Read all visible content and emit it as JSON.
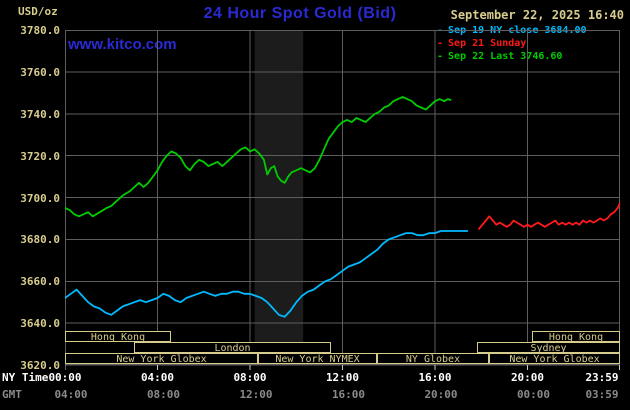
{
  "header": {
    "unit_label": "USD/oz",
    "title": "24 Hour Spot Gold (Bid)",
    "datetime": "September 22, 2025 16:40",
    "watermark": "www.kitco.com"
  },
  "legend": [
    {
      "label": "Sep 19 NY close 3684.00",
      "color": "#00bbff"
    },
    {
      "label": "Sep 21 Sunday",
      "color": "#ff1a1a"
    },
    {
      "label": "Sep 22 Last 3746.60",
      "color": "#00cc00"
    }
  ],
  "axes": {
    "ny_label": "NY Time",
    "gmt_label": "GMT",
    "x_ticks_ny": [
      "00:00",
      "04:00",
      "08:00",
      "12:00",
      "16:00",
      "20:00",
      "23:59"
    ],
    "x_ticks_gmt": [
      "04:00",
      "08:00",
      "12:00",
      "16:00",
      "20:00",
      "00:00",
      "03:59"
    ]
  },
  "sessions": {
    "rows": [
      {
        "boxes": [
          {
            "label": "Hong Kong",
            "start_hour": 0,
            "end_hour": 4.6
          },
          {
            "label": "Hong Kong",
            "start_hour": 20.2,
            "end_hour": 24
          }
        ]
      },
      {
        "boxes": [
          {
            "label": "London",
            "start_hour": 3.0,
            "end_hour": 11.5
          },
          {
            "label": "Sydney",
            "start_hour": 17.8,
            "end_hour": 24
          }
        ]
      },
      {
        "boxes": [
          {
            "label": "New York Globex",
            "start_hour": 0,
            "end_hour": 8.33
          },
          {
            "label": "New York NYMEX",
            "start_hour": 8.33,
            "end_hour": 13.5
          },
          {
            "label": "NY Globex",
            "start_hour": 13.5,
            "end_hour": 18.35
          },
          {
            "label": "New York Globex",
            "start_hour": 18.35,
            "end_hour": 24
          }
        ]
      }
    ]
  },
  "colors": {
    "background": "#000000",
    "grid": "#5e5e5e",
    "axis_text": "#d8cc8d",
    "session_box": "#d8cc8d",
    "title_blue": "#2a2ad4",
    "ny_time_text": "#ffffff",
    "gmt_text": "#8a8a8a",
    "tick_marks": "#c8c8c8",
    "cyan": "#00bbff",
    "red": "#ff1a1a",
    "green": "#00cc00"
  },
  "chart_data": {
    "type": "line",
    "title": "24 Hour Spot Gold (Bid)",
    "xlabel": "NY Time",
    "ylabel": "USD/oz",
    "ylim": [
      3620,
      3780
    ],
    "xlim_hours": [
      0,
      24
    ],
    "grid": true,
    "legend_position": "top-right",
    "y_ticks": [
      3780,
      3760,
      3740,
      3720,
      3700,
      3680,
      3660,
      3640,
      3620
    ],
    "x_tick_hours": [
      0,
      4,
      8,
      12,
      16,
      20,
      23.983
    ],
    "shaded_region": {
      "start_hour": 8.2,
      "end_hour": 10.3,
      "color": "#1c1c1c"
    },
    "series": [
      {
        "key": "sep19",
        "name": "Sep 19 NY close",
        "color": "#00bbff",
        "points": [
          [
            0,
            3652
          ],
          [
            0.25,
            3654
          ],
          [
            0.5,
            3656
          ],
          [
            0.75,
            3653
          ],
          [
            1.0,
            3650
          ],
          [
            1.25,
            3648
          ],
          [
            1.5,
            3647
          ],
          [
            1.75,
            3645
          ],
          [
            2.0,
            3644
          ],
          [
            2.25,
            3646
          ],
          [
            2.5,
            3648
          ],
          [
            2.75,
            3649
          ],
          [
            3.0,
            3650
          ],
          [
            3.25,
            3651
          ],
          [
            3.5,
            3650
          ],
          [
            3.75,
            3651
          ],
          [
            4.0,
            3652
          ],
          [
            4.25,
            3654
          ],
          [
            4.5,
            3653
          ],
          [
            4.75,
            3651
          ],
          [
            5.0,
            3650
          ],
          [
            5.25,
            3652
          ],
          [
            5.5,
            3653
          ],
          [
            5.75,
            3654
          ],
          [
            6.0,
            3655
          ],
          [
            6.25,
            3654
          ],
          [
            6.5,
            3653
          ],
          [
            6.75,
            3654
          ],
          [
            7.0,
            3654
          ],
          [
            7.25,
            3655
          ],
          [
            7.5,
            3655
          ],
          [
            7.75,
            3654
          ],
          [
            8.0,
            3654
          ],
          [
            8.25,
            3653
          ],
          [
            8.5,
            3652
          ],
          [
            8.75,
            3650
          ],
          [
            9.0,
            3647
          ],
          [
            9.25,
            3644
          ],
          [
            9.5,
            3643
          ],
          [
            9.75,
            3646
          ],
          [
            10.0,
            3650
          ],
          [
            10.25,
            3653
          ],
          [
            10.5,
            3655
          ],
          [
            10.75,
            3656
          ],
          [
            11.0,
            3658
          ],
          [
            11.25,
            3660
          ],
          [
            11.5,
            3661
          ],
          [
            11.75,
            3663
          ],
          [
            12.0,
            3665
          ],
          [
            12.25,
            3667
          ],
          [
            12.5,
            3668
          ],
          [
            12.75,
            3669
          ],
          [
            13.0,
            3671
          ],
          [
            13.25,
            3673
          ],
          [
            13.5,
            3675
          ],
          [
            13.75,
            3678
          ],
          [
            14.0,
            3680
          ],
          [
            14.25,
            3681
          ],
          [
            14.5,
            3682
          ],
          [
            14.75,
            3683
          ],
          [
            15.0,
            3683
          ],
          [
            15.25,
            3682
          ],
          [
            15.5,
            3682
          ],
          [
            15.75,
            3683
          ],
          [
            16.0,
            3683
          ],
          [
            16.25,
            3684
          ],
          [
            16.5,
            3684
          ],
          [
            16.75,
            3684
          ],
          [
            17.0,
            3684
          ],
          [
            17.4,
            3684
          ]
        ]
      },
      {
        "key": "sep21",
        "name": "Sep 21 Sunday",
        "color": "#ff1a1a",
        "points": [
          [
            17.9,
            3685
          ],
          [
            18.05,
            3687
          ],
          [
            18.2,
            3689
          ],
          [
            18.35,
            3691
          ],
          [
            18.5,
            3689
          ],
          [
            18.65,
            3687
          ],
          [
            18.8,
            3688
          ],
          [
            18.95,
            3687
          ],
          [
            19.1,
            3686
          ],
          [
            19.25,
            3687
          ],
          [
            19.4,
            3689
          ],
          [
            19.55,
            3688
          ],
          [
            19.7,
            3687
          ],
          [
            19.85,
            3686
          ],
          [
            20.0,
            3687
          ],
          [
            20.15,
            3686
          ],
          [
            20.3,
            3687
          ],
          [
            20.45,
            3688
          ],
          [
            20.6,
            3687
          ],
          [
            20.75,
            3686
          ],
          [
            20.9,
            3687
          ],
          [
            21.05,
            3688
          ],
          [
            21.2,
            3689
          ],
          [
            21.35,
            3687
          ],
          [
            21.5,
            3688
          ],
          [
            21.65,
            3687
          ],
          [
            21.8,
            3688
          ],
          [
            21.95,
            3687
          ],
          [
            22.1,
            3688
          ],
          [
            22.25,
            3687
          ],
          [
            22.4,
            3689
          ],
          [
            22.55,
            3688
          ],
          [
            22.7,
            3689
          ],
          [
            22.85,
            3688
          ],
          [
            23.0,
            3689
          ],
          [
            23.15,
            3690
          ],
          [
            23.3,
            3689
          ],
          [
            23.45,
            3690
          ],
          [
            23.6,
            3692
          ],
          [
            23.75,
            3693
          ],
          [
            23.9,
            3695
          ],
          [
            23.98,
            3697
          ]
        ]
      },
      {
        "key": "sep22",
        "name": "Sep 22 Last",
        "color": "#00cc00",
        "points": [
          [
            0,
            3695
          ],
          [
            0.2,
            3694
          ],
          [
            0.4,
            3692
          ],
          [
            0.6,
            3691
          ],
          [
            0.8,
            3692
          ],
          [
            1.0,
            3693
          ],
          [
            1.2,
            3691
          ],
          [
            1.5,
            3693
          ],
          [
            1.8,
            3695
          ],
          [
            2.0,
            3696
          ],
          [
            2.2,
            3698
          ],
          [
            2.5,
            3701
          ],
          [
            2.8,
            3703
          ],
          [
            3.0,
            3705
          ],
          [
            3.2,
            3707
          ],
          [
            3.4,
            3705
          ],
          [
            3.6,
            3707
          ],
          [
            3.8,
            3710
          ],
          [
            4.0,
            3713
          ],
          [
            4.2,
            3717
          ],
          [
            4.4,
            3720
          ],
          [
            4.6,
            3722
          ],
          [
            4.8,
            3721
          ],
          [
            5.0,
            3719
          ],
          [
            5.2,
            3715
          ],
          [
            5.4,
            3713
          ],
          [
            5.6,
            3716
          ],
          [
            5.8,
            3718
          ],
          [
            6.0,
            3717
          ],
          [
            6.2,
            3715
          ],
          [
            6.4,
            3716
          ],
          [
            6.6,
            3717
          ],
          [
            6.8,
            3715
          ],
          [
            7.0,
            3717
          ],
          [
            7.2,
            3719
          ],
          [
            7.4,
            3721
          ],
          [
            7.6,
            3723
          ],
          [
            7.8,
            3724
          ],
          [
            8.0,
            3722
          ],
          [
            8.2,
            3723
          ],
          [
            8.4,
            3721
          ],
          [
            8.6,
            3718
          ],
          [
            8.75,
            3711
          ],
          [
            8.9,
            3714
          ],
          [
            9.05,
            3715
          ],
          [
            9.2,
            3710
          ],
          [
            9.35,
            3708
          ],
          [
            9.5,
            3707
          ],
          [
            9.65,
            3710
          ],
          [
            9.8,
            3712
          ],
          [
            10.0,
            3713
          ],
          [
            10.2,
            3714
          ],
          [
            10.4,
            3713
          ],
          [
            10.6,
            3712
          ],
          [
            10.8,
            3714
          ],
          [
            11.0,
            3718
          ],
          [
            11.2,
            3723
          ],
          [
            11.4,
            3728
          ],
          [
            11.6,
            3731
          ],
          [
            11.8,
            3734
          ],
          [
            12.0,
            3736
          ],
          [
            12.2,
            3737
          ],
          [
            12.4,
            3736
          ],
          [
            12.6,
            3738
          ],
          [
            12.8,
            3737
          ],
          [
            13.0,
            3736
          ],
          [
            13.2,
            3738
          ],
          [
            13.4,
            3740
          ],
          [
            13.6,
            3741
          ],
          [
            13.8,
            3743
          ],
          [
            14.0,
            3744
          ],
          [
            14.2,
            3746
          ],
          [
            14.4,
            3747
          ],
          [
            14.6,
            3748
          ],
          [
            14.8,
            3747
          ],
          [
            15.0,
            3746
          ],
          [
            15.2,
            3744
          ],
          [
            15.4,
            3743
          ],
          [
            15.6,
            3742
          ],
          [
            15.8,
            3744
          ],
          [
            16.0,
            3746
          ],
          [
            16.2,
            3747
          ],
          [
            16.4,
            3746
          ],
          [
            16.55,
            3747
          ],
          [
            16.67,
            3746.6
          ]
        ]
      }
    ]
  }
}
